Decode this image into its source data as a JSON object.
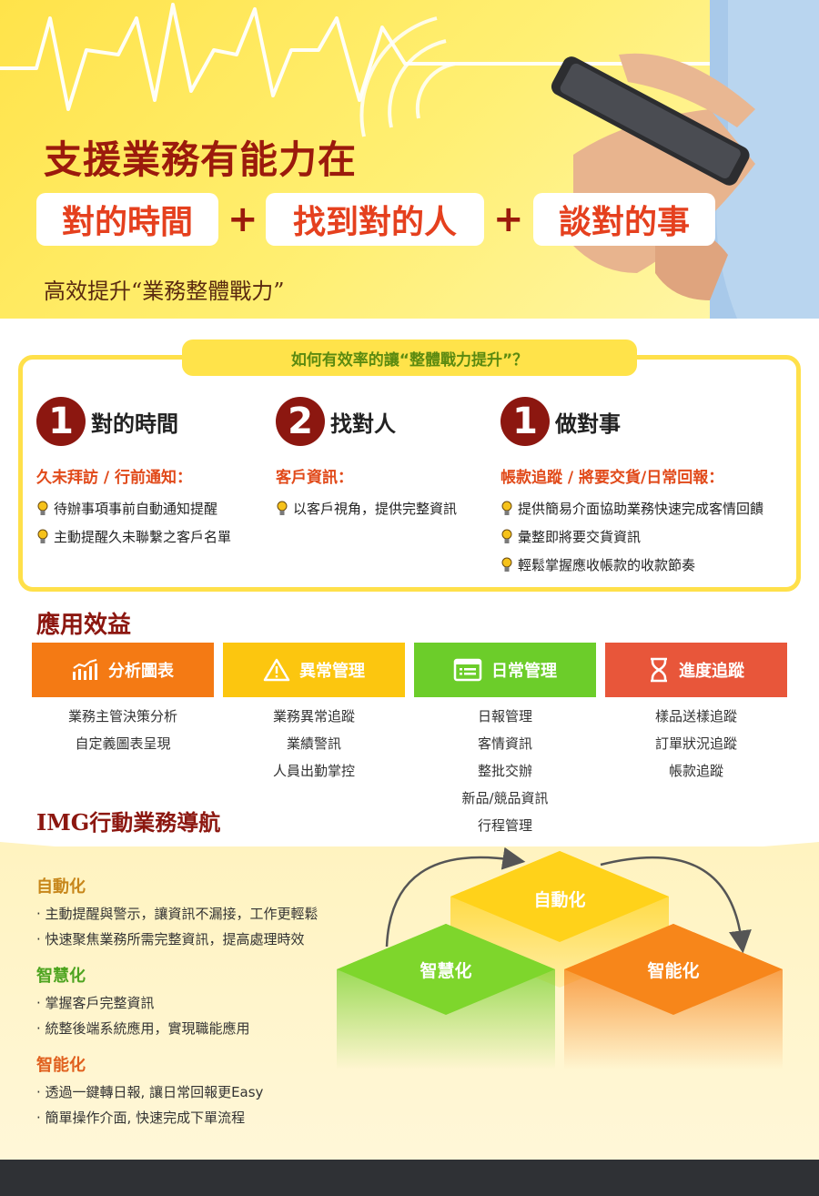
{
  "hero": {
    "title": "支援業務有能力在",
    "pill1": "對的時間",
    "pill2": "找到對的人",
    "pill3": "談對的事",
    "plus": "+",
    "subtitle": "高效提升“業務整體戰力”"
  },
  "efficiency": {
    "tab": "如何有效率的讓“整體戰力提升”？",
    "columns": [
      {
        "num": "1",
        "label": "對的時間",
        "head": "久未拜訪 / 行前通知：",
        "items": [
          "待辦事項事前自動通知提醒",
          "主動提醒久未聯繫之客戶名單"
        ]
      },
      {
        "num": "2",
        "label": "找對人",
        "head": "客戶資訊：",
        "items": [
          "以客戶視角，提供完整資訊"
        ]
      },
      {
        "num": "1",
        "label": "做對事",
        "head": "帳款追蹤 / 將要交貨/日常回報：",
        "items": [
          "提供簡易介面協助業務快速完成客情回饋",
          "彙整即將要交貨資訊",
          "輕鬆掌握應收帳款的收款節奏"
        ]
      }
    ]
  },
  "benefits": {
    "title": "應用效益",
    "cards": [
      {
        "label": "分析圖表",
        "color": "#f47a14",
        "items": [
          "業務主管決策分析",
          "自定義圖表呈現"
        ]
      },
      {
        "label": "異常管理",
        "color": "#fcc60f",
        "items": [
          "業務異常追蹤",
          "業績警訊",
          "人員出勤掌控"
        ]
      },
      {
        "label": "日常管理",
        "color": "#6ccd2a",
        "items": [
          "日報管理",
          "客情資訊",
          "整批交辦",
          "新品/競品資訊",
          "行程管理"
        ]
      },
      {
        "label": "進度追蹤",
        "color": "#e8563a",
        "items": [
          "樣品送樣追蹤",
          "訂單狀況追蹤",
          "帳款追蹤"
        ]
      }
    ]
  },
  "navigation": {
    "title": "IMG行動業務導航",
    "groups": [
      {
        "head": "自動化",
        "items": [
          "· 主動提醒與警示，讓資訊不漏接，工作更輕鬆",
          "· 快速聚焦業務所需完整資訊，提高處理時效"
        ]
      },
      {
        "head": "智慧化",
        "items": [
          "· 掌握客戶完整資訊",
          "· 統整後端系統應用，實現職能應用"
        ]
      },
      {
        "head": "智能化",
        "items": [
          "· 透過一鍵轉日報, 讓日常回報更Easy",
          "· 簡單操作介面, 快速完成下單流程"
        ]
      }
    ],
    "diagram": {
      "top": "自動化",
      "left": "智慧化",
      "right": "智能化"
    }
  }
}
